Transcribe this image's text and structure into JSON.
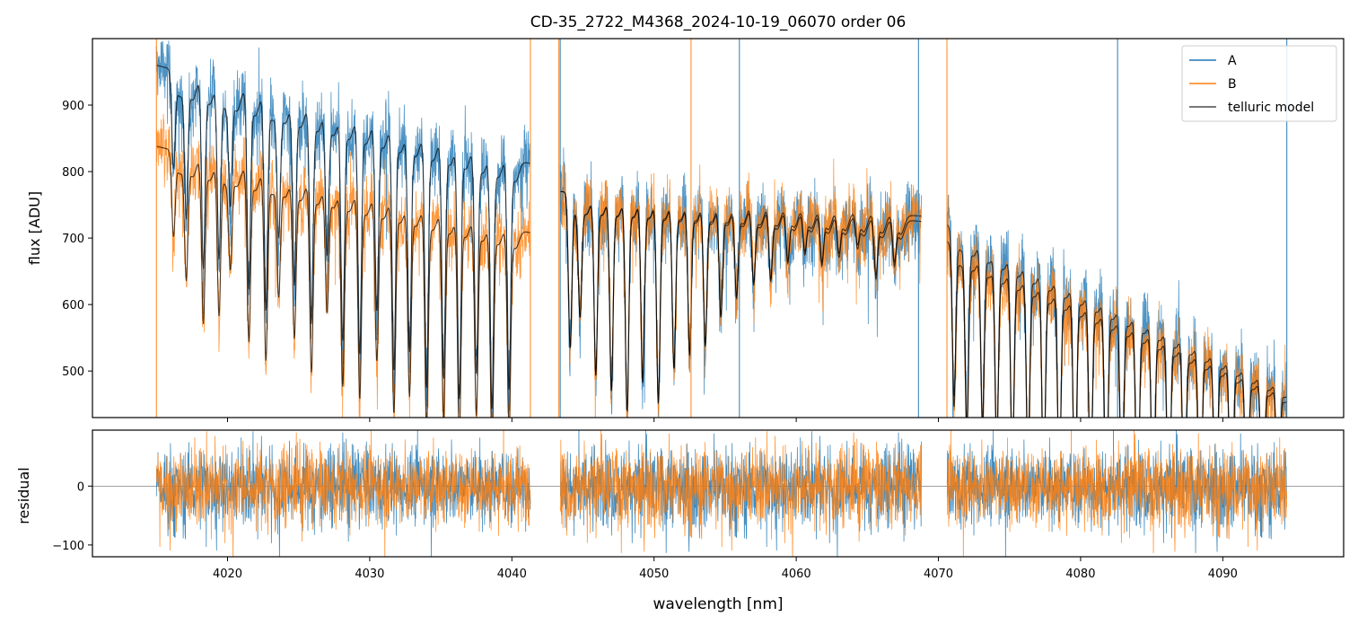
{
  "title": "CD-35_2722_M4368_2024-10-19_06070  order 06",
  "colors": {
    "A": "#1f77b4",
    "B": "#ff7f0e",
    "model": "#000000"
  },
  "chart_data": [
    {
      "type": "line",
      "panel": "top",
      "ylabel": "flux [ADU]",
      "xlim": [
        4010.5,
        4098.5
      ],
      "ylim": [
        430,
        1000
      ],
      "yticks": [
        500,
        600,
        700,
        800,
        900
      ],
      "legend": {
        "position": "top-right",
        "entries": [
          "A",
          "B",
          "telluric model"
        ]
      },
      "segments": [
        {
          "name": "segment-1",
          "x": [
            4015,
            4041.3
          ],
          "A_start": 960,
          "A_end": 812,
          "B_start": 840,
          "B_end": 705,
          "model_A_start": 960,
          "model_A_end": 812,
          "model_B_start": 838,
          "model_B_end": 708,
          "lines": [
            4016.2,
            4017.1,
            4018.3,
            4019.4,
            4020.2,
            4021.5,
            4022.7,
            4023.6,
            4024.7,
            4025.9,
            4027.0,
            4028.1,
            4029.3,
            4030.5,
            4031.7,
            4032.8,
            4034.0,
            4035.2,
            4036.3,
            4037.5,
            4038.6,
            4039.8
          ],
          "depth": [
            0.15,
            0.22,
            0.3,
            0.28,
            0.18,
            0.32,
            0.35,
            0.22,
            0.3,
            0.36,
            0.24,
            0.38,
            0.4,
            0.32,
            0.42,
            0.38,
            0.44,
            0.42,
            0.45,
            0.4,
            0.46,
            0.42
          ]
        },
        {
          "name": "segment-2",
          "x": [
            4043.4,
            4068.8
          ],
          "A_start": 770,
          "A_end": 725,
          "B_start": 770,
          "B_end": 733,
          "model_A_start": 770,
          "model_A_end": 725,
          "model_B_start": 770,
          "model_B_end": 733,
          "lines": [
            4044.1,
            4044.8,
            4045.9,
            4047.0,
            4048.1,
            4049.2,
            4050.3,
            4051.4,
            4052.5,
            4053.6,
            4054.7,
            4055.8,
            4057.0,
            4058.2,
            4059.4,
            4060.6,
            4061.8,
            4063.0,
            4064.3,
            4065.6,
            4066.9
          ],
          "depth": [
            0.3,
            0.22,
            0.35,
            0.38,
            0.42,
            0.36,
            0.4,
            0.33,
            0.3,
            0.28,
            0.22,
            0.18,
            0.15,
            0.14,
            0.1,
            0.08,
            0.1,
            0.08,
            0.06,
            0.12,
            0.09
          ]
        },
        {
          "name": "segment-3",
          "x": [
            4070.6,
            4094.5
          ],
          "A_start": 720,
          "A_end": 478,
          "B_start": 695,
          "B_end": 470,
          "model_A_start": 720,
          "model_A_end": 478,
          "model_B_start": 695,
          "model_B_end": 470,
          "lines": [
            4071.1,
            4072.0,
            4073.1,
            4074.1,
            4075.2,
            4076.3,
            4077.4,
            4078.5,
            4079.6,
            4080.7,
            4081.8,
            4082.9,
            4084.0,
            4085.1,
            4086.2,
            4087.3,
            4088.4,
            4089.5,
            4090.6,
            4091.7,
            4092.8,
            4093.9
          ],
          "depth": [
            0.35,
            0.4,
            0.38,
            0.42,
            0.45,
            0.44,
            0.48,
            0.46,
            0.5,
            0.48,
            0.52,
            0.5,
            0.54,
            0.52,
            0.55,
            0.5,
            0.56,
            0.54,
            0.56,
            0.5,
            0.55,
            0.4
          ]
        }
      ]
    },
    {
      "type": "line",
      "panel": "bottom",
      "ylabel": "residual",
      "xlabel": "wavelength [nm]",
      "xlim": [
        4010.5,
        4098.5
      ],
      "ylim": [
        -120,
        95
      ],
      "yticks": [
        -100,
        0
      ],
      "xticks": [
        4020,
        4030,
        4040,
        4050,
        4060,
        4070,
        4080,
        4090
      ],
      "baseline": 0,
      "segments_x": [
        [
          4015,
          4041.3
        ],
        [
          4043.4,
          4068.8
        ],
        [
          4070.6,
          4094.5
        ]
      ],
      "noise_amplitude": 60
    }
  ]
}
